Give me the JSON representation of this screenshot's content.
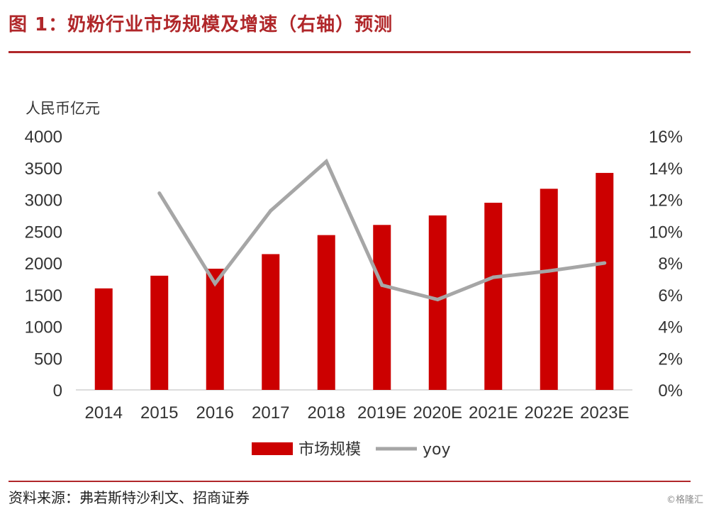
{
  "header": {
    "title": "图 1：奶粉行业市场规模及增速（右轴）预测"
  },
  "footer": {
    "source": "资料来源：弗若斯特沙利文、招商证券",
    "watermark": "©格隆汇"
  },
  "colors": {
    "accent": "#b0272a",
    "bar": "#cc0000",
    "line": "#a6a6a6"
  },
  "chart_data": {
    "type": "bar",
    "categories": [
      "2014",
      "2015",
      "2016",
      "2017",
      "2018",
      "2019E",
      "2020E",
      "2021E",
      "2022E",
      "2023E"
    ],
    "ylabel": "人民币亿元",
    "ylim": [
      0,
      4000
    ],
    "yticks": [
      0,
      500,
      1000,
      1500,
      2000,
      2500,
      3000,
      3500,
      4000
    ],
    "y2lim": [
      0,
      16
    ],
    "y2ticks": [
      "0%",
      "2%",
      "4%",
      "6%",
      "8%",
      "10%",
      "12%",
      "14%",
      "16%"
    ],
    "grid": false,
    "legend_position": "bottom",
    "series": [
      {
        "name": "市场规模",
        "type": "bar",
        "axis": "left",
        "values": [
          1600,
          1800,
          1910,
          2140,
          2440,
          2600,
          2750,
          2950,
          3170,
          3420
        ]
      },
      {
        "name": "yoy",
        "type": "line",
        "axis": "right",
        "unit": "%",
        "values": [
          null,
          12.4,
          6.7,
          11.3,
          14.4,
          6.6,
          5.7,
          7.1,
          7.5,
          8.0
        ]
      }
    ]
  }
}
